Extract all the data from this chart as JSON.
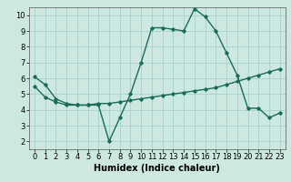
{
  "title": "",
  "xlabel": "Humidex (Indice chaleur)",
  "ylabel": "",
  "bg_color": "#cce8e0",
  "grid_color": "#aad4cc",
  "line_color": "#1a6b5a",
  "xlim": [
    -0.5,
    23.5
  ],
  "ylim": [
    1.5,
    10.5
  ],
  "xticks": [
    0,
    1,
    2,
    3,
    4,
    5,
    6,
    7,
    8,
    9,
    10,
    11,
    12,
    13,
    14,
    15,
    16,
    17,
    18,
    19,
    20,
    21,
    22,
    23
  ],
  "yticks": [
    2,
    3,
    4,
    5,
    6,
    7,
    8,
    9,
    10
  ],
  "line1_x": [
    0,
    1,
    2,
    3,
    4,
    5,
    6,
    7,
    8,
    9,
    10,
    11,
    12,
    13,
    14,
    15,
    16,
    17,
    18,
    19,
    20,
    21,
    22,
    23
  ],
  "line1_y": [
    6.1,
    5.6,
    4.7,
    4.4,
    4.3,
    4.3,
    4.3,
    2.0,
    3.5,
    5.0,
    7.0,
    9.2,
    9.2,
    9.1,
    9.0,
    10.4,
    9.9,
    9.0,
    7.6,
    6.2,
    4.1,
    4.1,
    3.5,
    3.8
  ],
  "line2_x": [
    0,
    1,
    2,
    3,
    4,
    5,
    6,
    7,
    8,
    9,
    10,
    11,
    12,
    13,
    14,
    15,
    16,
    17,
    18,
    19,
    20,
    21,
    22,
    23
  ],
  "line2_y": [
    5.5,
    4.8,
    4.5,
    4.3,
    4.3,
    4.3,
    4.4,
    4.4,
    4.5,
    4.6,
    4.7,
    4.8,
    4.9,
    5.0,
    5.1,
    5.2,
    5.3,
    5.4,
    5.6,
    5.8,
    6.0,
    6.2,
    6.4,
    6.6
  ],
  "marker": "D",
  "marker_size": 1.8,
  "linewidth": 1.0,
  "xlabel_fontsize": 7,
  "tick_fontsize": 6
}
